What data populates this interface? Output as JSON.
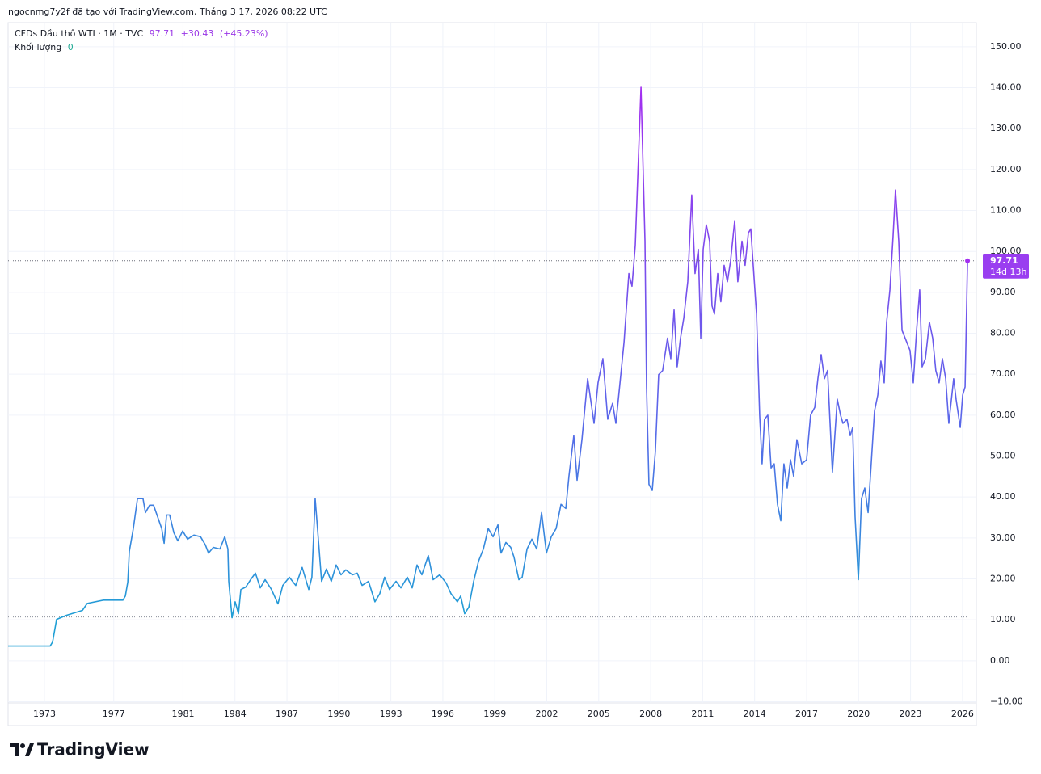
{
  "attribution": "ngocnmg7y2f đã tạo với TradingView.com, Tháng 3 17, 2026 08:22 UTC",
  "brand": "TradingView",
  "chart_data": {
    "type": "line",
    "title": "CFDs Dầu thô WTI · 1M · TVC",
    "last": 97.71,
    "change": "+30.43",
    "change_pct": "(+45.23%)",
    "volume_label": "Khối lượng",
    "volume": 0,
    "countdown": "14d 13h",
    "x": [
      1970.9,
      1973.33,
      1973.47,
      1973.7,
      1974.26,
      1975.19,
      1975.47,
      1976.41,
      1977.53,
      1977.67,
      1977.81,
      1977.9,
      1978.13,
      1978.37,
      1978.69,
      1978.83,
      1979.07,
      1979.3,
      1979.53,
      1979.77,
      1979.91,
      1980.05,
      1980.23,
      1980.47,
      1980.7,
      1980.98,
      1981.26,
      1981.63,
      1982.01,
      1982.29,
      1982.47,
      1982.75,
      1983.13,
      1983.41,
      1983.59,
      1983.64,
      1983.83,
      1984.01,
      1984.2,
      1984.34,
      1984.62,
      1984.9,
      1985.18,
      1985.46,
      1985.74,
      1986.11,
      1986.48,
      1986.76,
      1987.14,
      1987.51,
      1987.88,
      1988.26,
      1988.44,
      1988.63,
      1988.82,
      1989.0,
      1989.28,
      1989.56,
      1989.84,
      1990.12,
      1990.4,
      1990.78,
      1991.06,
      1991.34,
      1991.71,
      1992.08,
      1992.36,
      1992.64,
      1992.92,
      1993.3,
      1993.58,
      1993.95,
      1994.23,
      1994.51,
      1994.79,
      1995.16,
      1995.44,
      1995.82,
      1996.19,
      1996.47,
      1996.84,
      1997.03,
      1997.26,
      1997.5,
      1997.78,
      1998.06,
      1998.34,
      1998.62,
      1998.9,
      1999.18,
      1999.36,
      1999.64,
      1999.92,
      2000.11,
      2000.39,
      2000.58,
      2000.86,
      2001.14,
      2001.42,
      2001.7,
      2001.98,
      2002.26,
      2002.54,
      2002.82,
      2003.1,
      2003.28,
      2003.56,
      2003.75,
      2004.03,
      2004.36,
      2004.73,
      2004.96,
      2005.24,
      2005.52,
      2005.8,
      2005.99,
      2006.18,
      2006.46,
      2006.74,
      2006.92,
      2007.11,
      2007.44,
      2007.67,
      2007.76,
      2007.9,
      2008.09,
      2008.27,
      2008.46,
      2008.69,
      2008.97,
      2009.16,
      2009.35,
      2009.53,
      2009.72,
      2009.91,
      2010.14,
      2010.37,
      2010.56,
      2010.75,
      2010.89,
      2011.03,
      2011.21,
      2011.4,
      2011.54,
      2011.68,
      2011.87,
      2012.05,
      2012.24,
      2012.43,
      2012.61,
      2012.85,
      2013.03,
      2013.27,
      2013.45,
      2013.64,
      2013.78,
      2013.92,
      2014.11,
      2014.29,
      2014.43,
      2014.57,
      2014.76,
      2014.95,
      2015.13,
      2015.32,
      2015.51,
      2015.69,
      2015.88,
      2016.07,
      2016.25,
      2016.44,
      2016.72,
      2017.0,
      2017.23,
      2017.47,
      2017.65,
      2017.84,
      2018.03,
      2018.21,
      2018.49,
      2018.77,
      2018.96,
      2019.1,
      2019.33,
      2019.52,
      2019.66,
      2019.8,
      2019.99,
      2020.17,
      2020.36,
      2020.55,
      2020.73,
      2020.92,
      2021.11,
      2021.29,
      2021.48,
      2021.62,
      2021.81,
      2021.99,
      2022.13,
      2022.32,
      2022.51,
      2022.69,
      2022.97,
      2023.16,
      2023.35,
      2023.53,
      2023.67,
      2023.86,
      2024.09,
      2024.28,
      2024.46,
      2024.65,
      2024.84,
      2025.03,
      2025.21,
      2025.49,
      2025.63,
      2025.87,
      2026.01,
      2026.15,
      2026.29
    ],
    "series": [
      {
        "values": [
          3.6,
          3.6,
          4.6,
          10.1,
          11.1,
          12.3,
          14,
          14.8,
          14.8,
          15.8,
          19.2,
          26.7,
          32.3,
          39.6,
          39.6,
          36.2,
          38,
          38,
          35.2,
          32.3,
          28.7,
          35.6,
          35.6,
          31.3,
          29.3,
          31.7,
          29.7,
          30.7,
          30.3,
          28.3,
          26.3,
          27.7,
          27.3,
          30.3,
          27.3,
          19.4,
          10.5,
          14.4,
          11.5,
          17.4,
          18,
          19.8,
          21.4,
          17.8,
          19.8,
          17.4,
          13.9,
          18.4,
          20.4,
          18.4,
          22.8,
          17.4,
          20.4,
          39.6,
          29.3,
          19.4,
          22.4,
          19.4,
          23.4,
          21,
          22.2,
          21,
          21.4,
          18.4,
          19.4,
          14.4,
          16.4,
          20.4,
          17.4,
          19.4,
          17.8,
          20.4,
          17.8,
          23.4,
          21,
          25.7,
          19.8,
          21,
          19,
          16.4,
          14.4,
          15.8,
          11.5,
          13.1,
          19.4,
          24.3,
          27.3,
          32.3,
          30.3,
          33.2,
          26.3,
          28.9,
          27.7,
          25.3,
          19.8,
          20.4,
          27.3,
          29.7,
          27.3,
          36.2,
          26.3,
          30.3,
          32.3,
          38.2,
          37.2,
          45.1,
          55,
          44.1,
          54,
          68.9,
          58,
          67.9,
          73.8,
          59,
          62.9,
          58,
          65.9,
          77.8,
          94.6,
          91.5,
          101.5,
          140.1,
          102.5,
          66.9,
          43.1,
          41.6,
          51.1,
          69.9,
          70.9,
          78.8,
          73.8,
          85.7,
          71.8,
          78.8,
          83.7,
          92.6,
          113.8,
          94.6,
          100.5,
          78.8,
          100.5,
          106.5,
          102.5,
          86.7,
          84.7,
          94.6,
          87.7,
          96.6,
          92.6,
          97.6,
          107.5,
          92.6,
          102.5,
          96.6,
          104.5,
          105.5,
          96.6,
          84.7,
          60,
          48.1,
          59,
          60,
          47.1,
          48.1,
          38.2,
          34.2,
          48.1,
          42.2,
          49.1,
          45.1,
          54,
          48.1,
          49.1,
          60,
          61.9,
          68.9,
          74.8,
          68.9,
          70.9,
          46.1,
          63.9,
          60,
          58,
          59,
          55,
          57,
          35.2,
          19.8,
          39.6,
          42.2,
          36.2,
          48.1,
          61,
          64.9,
          73.2,
          67.9,
          82.7,
          90.6,
          103.5,
          115,
          102.5,
          80.7,
          78.8,
          75.8,
          67.9,
          80.7,
          90.6,
          71.8,
          73.8,
          82.7,
          78.8,
          70.9,
          67.9,
          73.8,
          68.9,
          58,
          68.9,
          63.9,
          57,
          64.9,
          66.9,
          97.71
        ],
        "gradient": [
          {
            "value": 10,
            "color": "#1f9fd5"
          },
          {
            "value": 60,
            "color": "#5b66ea"
          },
          {
            "value": 140,
            "color": "#a32ff0"
          }
        ]
      }
    ],
    "low_line": 10.7,
    "xlim": [
      1970.9,
      2026.8
    ],
    "ylim": [
      -10.3,
      155.9
    ],
    "xticks": [
      1973,
      1977,
      1981,
      1984,
      1987,
      1990,
      1993,
      1996,
      1999,
      2002,
      2005,
      2008,
      2011,
      2014,
      2017,
      2020,
      2023,
      2026
    ],
    "yticks": [
      {
        "value": -10,
        "label": "−10.00"
      },
      {
        "value": 0,
        "label": "0.00"
      },
      {
        "value": 10,
        "label": "10.00"
      },
      {
        "value": 20,
        "label": "20.00"
      },
      {
        "value": 30,
        "label": "30.00"
      },
      {
        "value": 40,
        "label": "40.00"
      },
      {
        "value": 50,
        "label": "50.00"
      },
      {
        "value": 60,
        "label": "60.00"
      },
      {
        "value": 70,
        "label": "70.00"
      },
      {
        "value": 80,
        "label": "80.00"
      },
      {
        "value": 90,
        "label": "90.00"
      },
      {
        "value": 100,
        "label": "100.00"
      },
      {
        "value": 110,
        "label": "110.00"
      },
      {
        "value": 120,
        "label": "120.00"
      },
      {
        "value": 130,
        "label": "130.00"
      },
      {
        "value": 140,
        "label": "140.00"
      },
      {
        "value": 150,
        "label": "150.00"
      }
    ],
    "grid": true
  }
}
